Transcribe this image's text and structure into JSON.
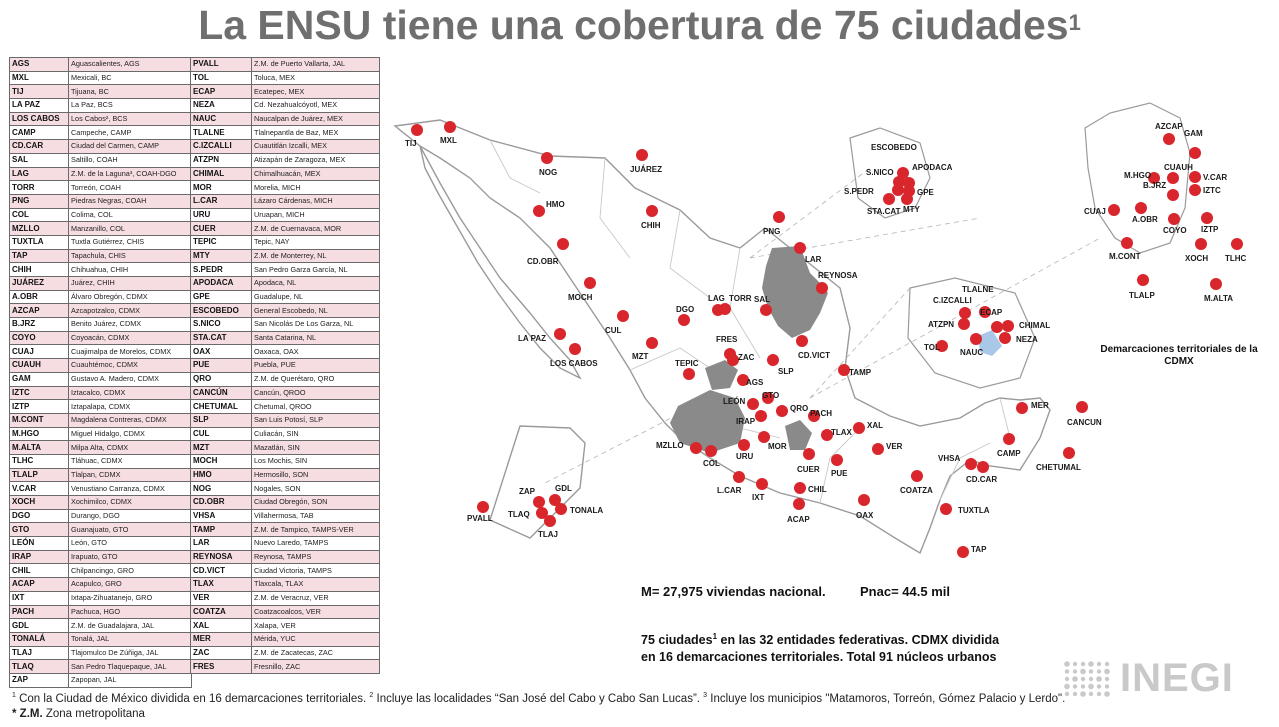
{
  "title": {
    "main": "La ENSU tiene una cobertura de 75 ciudades",
    "sup": "1"
  },
  "table_left": [
    [
      "AGS",
      "Aguascalientes, AGS"
    ],
    [
      "MXL",
      "Mexicali, BC"
    ],
    [
      "TIJ",
      "Tijuana, BC"
    ],
    [
      "LA PAZ",
      "La Paz, BCS"
    ],
    [
      "LOS CABOS",
      "Los Cabos², BCS"
    ],
    [
      "CAMP",
      "Campeche, CAMP"
    ],
    [
      "CD.CAR",
      "Ciudad del Carmen, CAMP"
    ],
    [
      "SAL",
      "Saltillo, COAH"
    ],
    [
      "LAG",
      "Z.M. de la Laguna³, COAH-DGO"
    ],
    [
      "TORR",
      "Torreón, COAH"
    ],
    [
      "PNG",
      "Piedras Negras, COAH"
    ],
    [
      "COL",
      "Colima, COL"
    ],
    [
      "MZLLO",
      "Manzanillo, COL"
    ],
    [
      "TUXTLA",
      "Tuxtla Gutiérrez, CHIS"
    ],
    [
      "TAP",
      "Tapachula, CHIS"
    ],
    [
      "CHIH",
      "Chihuahua, CHIH"
    ],
    [
      "JUÁREZ",
      "Juárez, CHIH"
    ],
    [
      "A.OBR",
      "Álvaro Obregón, CDMX"
    ],
    [
      "AZCAP",
      "Azcapotzalco, CDMX"
    ],
    [
      "B.JRZ",
      "Benito Juárez, CDMX"
    ],
    [
      "COYO",
      "Coyoacán, CDMX"
    ],
    [
      "CUAJ",
      "Cuajimalpa de Morelos, CDMX"
    ],
    [
      "CUAUH",
      "Cuauhtémoc, CDMX"
    ],
    [
      "GAM",
      "Gustavo A. Madero, CDMX"
    ],
    [
      "IZTC",
      "Iztacalco, CDMX"
    ],
    [
      "IZTP",
      "Iztapalapa, CDMX"
    ],
    [
      "M.CONT",
      "Magdalena Contreras, CDMX"
    ],
    [
      "M.HGO",
      "Miguel Hidalgo, CDMX"
    ],
    [
      "M.ALTA",
      "Milpa Alta, CDMX"
    ],
    [
      "TLHC",
      "Tláhuac, CDMX"
    ],
    [
      "TLALP",
      "Tlalpan, CDMX"
    ],
    [
      "V.CAR",
      "Venustiano Carranza, CDMX"
    ],
    [
      "XOCH",
      "Xochimilco, CDMX"
    ],
    [
      "DGO",
      "Durango, DGO"
    ],
    [
      "GTO",
      "Guanajuato, GTO"
    ],
    [
      "LEÓN",
      "León, GTO"
    ],
    [
      "IRAP",
      "Irapuato, GTO"
    ],
    [
      "CHIL",
      "Chilpancingo, GRO"
    ],
    [
      "ACAP",
      "Acapulco, GRO"
    ],
    [
      "IXT",
      "Ixtapa-Zihuatanejo, GRO"
    ],
    [
      "PACH",
      "Pachuca, HGO"
    ],
    [
      "GDL",
      "Z.M. de Guadalajara, JAL"
    ],
    [
      "TONALÁ",
      "Tonalá, JAL"
    ],
    [
      "TLAJ",
      "Tlajomulco De Zúñiga, JAL"
    ],
    [
      "TLAQ",
      "San Pedro Tlaquepaque, JAL"
    ],
    [
      "ZAP",
      "Zapopan, JAL"
    ]
  ],
  "table_right": [
    [
      "PVALL",
      "Z.M. de Puerto Vallarta, JAL"
    ],
    [
      "TOL",
      "Toluca, MEX"
    ],
    [
      "ECAP",
      "Ecatepec, MEX"
    ],
    [
      "NEZA",
      "Cd. Nezahualcóyotl, MEX"
    ],
    [
      "NAUC",
      "Naucalpan de Juárez, MEX"
    ],
    [
      "TLALNE",
      "Tlalnepantla de Baz, MEX"
    ],
    [
      "C.IZCALLI",
      "Cuautitlán Izcalli, MEX"
    ],
    [
      "ATZPN",
      "Atizapán de Zaragoza, MEX"
    ],
    [
      "CHIMAL",
      "Chimalhuacán, MEX"
    ],
    [
      "MOR",
      "Morelia, MICH"
    ],
    [
      "L.CAR",
      "Lázaro Cárdenas, MICH"
    ],
    [
      "URU",
      "Uruapan, MICH"
    ],
    [
      "CUER",
      "Z.M. de Cuernavaca, MOR"
    ],
    [
      "TEPIC",
      "Tepic, NAY"
    ],
    [
      "MTY",
      "Z.M. de Monterrey, NL"
    ],
    [
      "S.PEDR",
      "San Pedro Garza García, NL"
    ],
    [
      "APODACA",
      "Apodaca, NL"
    ],
    [
      "GPE",
      "Guadalupe, NL"
    ],
    [
      "ESCOBEDO",
      "General Escobedo, NL"
    ],
    [
      "S.NICO",
      "San Nicolás De Los Garza, NL"
    ],
    [
      "STA.CAT",
      "Santa Catarina, NL"
    ],
    [
      "OAX",
      "Oaxaca, OAX"
    ],
    [
      "PUE",
      "Puebla, PUE"
    ],
    [
      "QRO",
      "Z.M. de Querétaro, QRO"
    ],
    [
      "CANCÚN",
      "Cancún, QROO"
    ],
    [
      "CHETUMAL",
      "Chetumal, QROO"
    ],
    [
      "SLP",
      "San Luis Potosí, SLP"
    ],
    [
      "CUL",
      "Culiacán, SIN"
    ],
    [
      "MZT",
      "Mazatlán, SIN"
    ],
    [
      "MOCH",
      "Los Mochis, SIN"
    ],
    [
      "HMO",
      "Hermosillo, SON"
    ],
    [
      "NOG",
      "Nogales, SON"
    ],
    [
      "CD.OBR",
      "Ciudad Obregón, SON"
    ],
    [
      "VHSA",
      "Villahermosa, TAB"
    ],
    [
      "TAMP",
      "Z.M. de Tampico, TAMPS-VER"
    ],
    [
      "LAR",
      "Nuevo Laredo, TAMPS"
    ],
    [
      "REYNOSA",
      "Reynosa, TAMPS"
    ],
    [
      "CD.VICT",
      "Ciudad Victoria, TAMPS"
    ],
    [
      "TLAX",
      "Tlaxcala, TLAX"
    ],
    [
      "VER",
      "Z.M. de Veracruz, VER"
    ],
    [
      "COATZA",
      "Coatzacoalcos, VER"
    ],
    [
      "XAL",
      "Xalapa, VER"
    ],
    [
      "MER",
      "Mérida, YUC"
    ],
    [
      "ZAC",
      "Z.M. de Zacatecas, ZAC"
    ],
    [
      "FRES",
      "Fresnillo, ZAC"
    ]
  ],
  "map_cities": [
    "TIJ",
    "MXL",
    "NOG",
    "JUÁREZ",
    "HMO",
    "CHIH",
    "PNG",
    "LAR",
    "REYNOSA",
    "CD.OBR",
    "MOCH",
    "LA PAZ",
    "LOS CABOS",
    "CUL",
    "MZT",
    "DGO",
    "LAG",
    "TORR",
    "SAL",
    "FRES",
    "ZAC",
    "TEPIC",
    "AGS",
    "SLP",
    "CD.VICT",
    "TAMP",
    "LEÓN",
    "GTO",
    "QRO",
    "IRAP",
    "PACH",
    "MOR",
    "TLAX",
    "XAL",
    "MZLLO",
    "COL",
    "URU",
    "CUER",
    "PUE",
    "VER",
    "L.CAR",
    "IXT",
    "CHIL",
    "ACAP",
    "OAX",
    "COATZA",
    "VHSA",
    "CD.CAR",
    "CAMP",
    "MER",
    "CANCUN",
    "CHETUMAL",
    "TUXTLA",
    "TAP",
    "PVALL",
    "ZAP",
    "GDL",
    "TLAQ",
    "TONALA",
    "TLAJ",
    "ESCOBEDO",
    "S.NICO",
    "APODACA",
    "S.PEDR",
    "GPE",
    "STA.CAT",
    "MTY",
    "C.IZCALLI",
    "TLALNE",
    "ECAP",
    "ATZPN",
    "CHIMAL",
    "TOL",
    "NAUC",
    "NEZA",
    "AZCAP",
    "GAM",
    "CUAUH",
    "M.HGO",
    "V.CAR",
    "B.JRZ",
    "IZTC",
    "CUAJ",
    "A.OBR",
    "COYO",
    "IZTP",
    "M.CONT",
    "XOCH",
    "TLHC",
    "TLALP",
    "M.ALTA"
  ],
  "cdmx_caption": "Demarcaciones territoriales de la CDMX",
  "stats": {
    "m": "M= 27,975 viviendas nacional.",
    "pnac": "Pnac= 44.5 mil"
  },
  "coverage": {
    "line1_pre": "75 ciudades",
    "line1_sup": "1",
    "line1_post": " en las 32 entidades federativas. CDMX dividida",
    "line2": "en 16 demarcaciones territoriales. Total 91 núcleos urbanos"
  },
  "footnote": {
    "s1": "1",
    "t1": " Con la Ciudad de México dividida en 16 demarcaciones territoriales. ",
    "s2": "2",
    "t2": " Incluye las localidades “San José del Cabo y Cabo San Lucas”. ",
    "s3": "3",
    "t3": " Incluye los municipios \"Matamoros, Torreón, Gómez Palacio y Lerdo\". ",
    "zm_bold": "* Z.M.",
    "zm_text": " Zona metropolitana"
  },
  "logo": {
    "text": "INEGI"
  },
  "colors": {
    "title": "#6f6f6f",
    "city_dot": "#d8262c",
    "zm_fill": "#8a8a8a",
    "row_pink": "#f6dde2"
  },
  "icons": {
    "city_marker": "red-dot-icon",
    "logo_mark": "inegi-dots-icon"
  }
}
